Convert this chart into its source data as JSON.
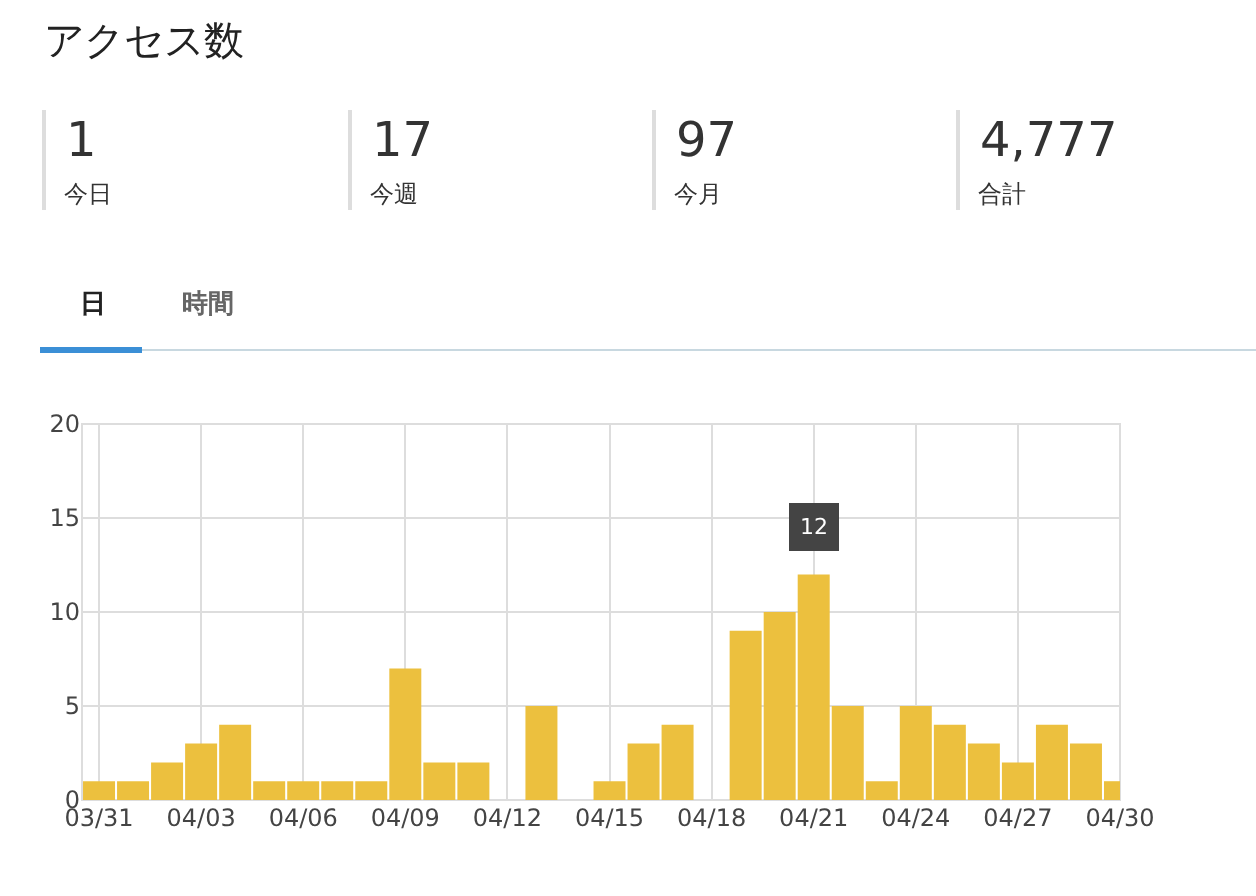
{
  "chart_data": {
    "type": "bar",
    "title": "アクセス数",
    "categories": [
      "03/31",
      null,
      null,
      "04/03",
      null,
      null,
      "04/06",
      null,
      null,
      "04/09",
      null,
      null,
      "04/12",
      null,
      null,
      "04/15",
      null,
      null,
      "04/18",
      null,
      null,
      "04/21",
      null,
      null,
      "04/24",
      null,
      null,
      "04/27",
      null,
      null,
      "04/30"
    ],
    "values": [
      1,
      1,
      2,
      3,
      4,
      1,
      1,
      1,
      1,
      7,
      2,
      2,
      0,
      5,
      0,
      1,
      3,
      4,
      0,
      9,
      10,
      12,
      5,
      1,
      5,
      4,
      3,
      2,
      4,
      3,
      1
    ],
    "color": "#ecc03e",
    "ylim": [
      0,
      20
    ],
    "yticks": [
      0,
      5,
      10,
      15,
      20
    ],
    "grid": true,
    "legend": false,
    "annotations": [
      "1",
      "今日",
      "17",
      "今週",
      "97",
      "今月",
      "4,777",
      "合計",
      "日",
      "時間",
      {
        "text": "12",
        "x": "04/21",
        "y": 12
      }
    ]
  }
}
